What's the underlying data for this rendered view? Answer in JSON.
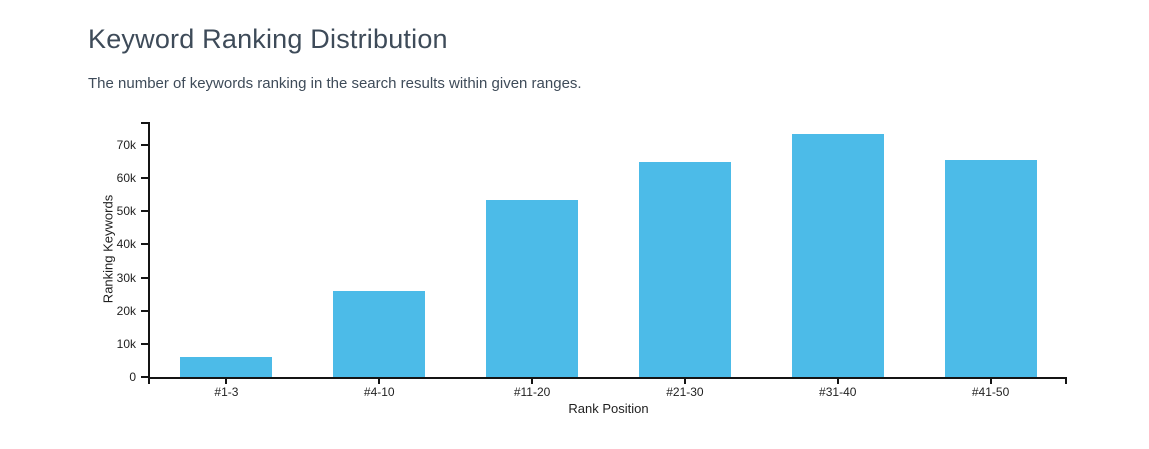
{
  "page": {
    "title": "Keyword Ranking Distribution",
    "subtitle": "The number of keywords ranking in the search results within given ranges."
  },
  "theme": {
    "background": "#ffffff",
    "heading_color": "#3e4b59",
    "bar_color": "#4cbbe8",
    "axis_color": "#141414",
    "tick_label_color": "#1f1f1f"
  },
  "chart_data": {
    "type": "bar",
    "title": "Keyword Ranking Distribution",
    "subtitle": "The number of keywords ranking in the search results within given ranges.",
    "categories": [
      "#1-3",
      "#4-10",
      "#11-20",
      "#21-30",
      "#31-40",
      "#41-50"
    ],
    "values": [
      6000,
      26000,
      53500,
      64700,
      73200,
      65500
    ],
    "xlabel": "Rank Position",
    "ylabel": "Ranking Keywords",
    "ylim": [
      0,
      76900
    ],
    "yticks": [
      {
        "value": 0,
        "label": "0"
      },
      {
        "value": 10000,
        "label": "10k"
      },
      {
        "value": 20000,
        "label": "20k"
      },
      {
        "value": 30000,
        "label": "30k"
      },
      {
        "value": 40000,
        "label": "40k"
      },
      {
        "value": 50000,
        "label": "50k"
      },
      {
        "value": 60000,
        "label": "60k"
      },
      {
        "value": 70000,
        "label": "70k"
      }
    ],
    "grid": false,
    "legend": false
  }
}
